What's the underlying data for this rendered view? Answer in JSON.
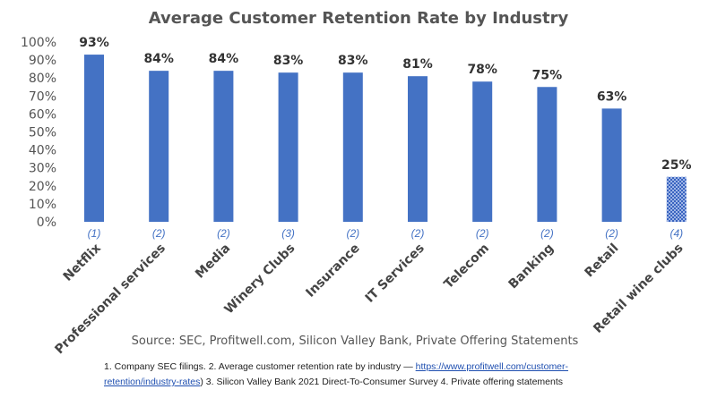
{
  "chart_data": {
    "type": "bar",
    "title": "Average Customer Retention Rate by Industry",
    "categories": [
      "Netflix",
      "Professional services",
      "Media",
      "Winery Clubs",
      "Insurance",
      "IT Services",
      "Telecom",
      "Banking",
      "Retail",
      "Retail wine clubs"
    ],
    "values": [
      93,
      84,
      84,
      83,
      83,
      81,
      78,
      75,
      63,
      25
    ],
    "value_labels": [
      "93%",
      "84%",
      "84%",
      "83%",
      "83%",
      "81%",
      "78%",
      "75%",
      "63%",
      "25%"
    ],
    "notes": [
      "(1)",
      "(2)",
      "(2)",
      "(3)",
      "(2)",
      "(2)",
      "(2)",
      "(2)",
      "(2)",
      "(4)"
    ],
    "y_ticks": [
      "0%",
      "10%",
      "20%",
      "30%",
      "40%",
      "50%",
      "60%",
      "70%",
      "80%",
      "90%",
      "100%"
    ],
    "ylim": [
      0,
      100
    ],
    "grid": false,
    "bar_color": "#4472C4",
    "highlight_category": "Retail wine clubs",
    "highlight_pattern": "dotted"
  },
  "source": "Source: SEC, Profitwell.com, Silicon Valley Bank, Private Offering Statements",
  "footnotes": {
    "line1_text": "1. Company SEC filings. 2. Average customer retention rate by industry — ",
    "link_part1": "https://www.profitwell.com/customer-",
    "link_part2": "retention/industry-rates",
    "line2_text": ")  3.  Silicon Valley Bank 2021 Direct-To-Consumer Survey 4. Private offering statements"
  }
}
